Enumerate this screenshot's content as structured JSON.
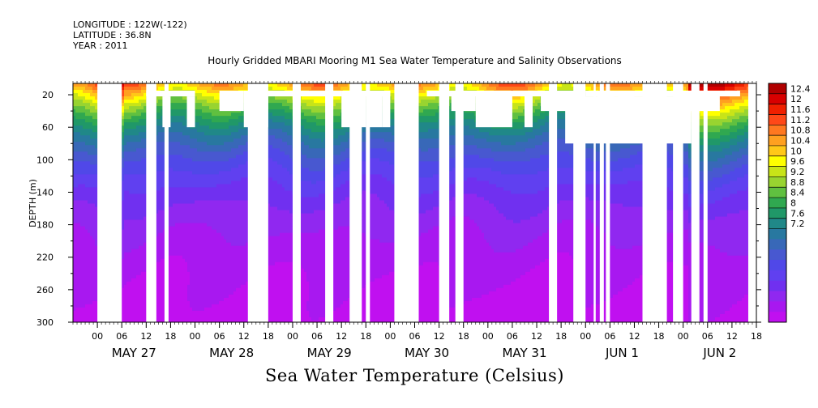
{
  "header": {
    "longitude": "LONGITUDE : 122W(-122)",
    "latitude": "LATITUDE : 36.8N",
    "year": "YEAR : 2011"
  },
  "chart_data": {
    "type": "heatmap",
    "title": "Hourly Gridded MBARI Mooring M1 Sea Water Temperature and Salinity Observations",
    "variable_label": "Sea Water Temperature (Celsius)",
    "ylabel": "DEPTH (m)",
    "y_ticks": [
      20,
      60,
      100,
      140,
      180,
      220,
      260,
      300
    ],
    "ylim": [
      6,
      300
    ],
    "y_inverted": true,
    "xlim_hours_of_window": [
      -6,
      162
    ],
    "hour_ticks": [
      "00",
      "06",
      "12",
      "18",
      "00",
      "06",
      "12",
      "18",
      "00",
      "06",
      "12",
      "18",
      "00",
      "06",
      "12",
      "18",
      "00",
      "06",
      "12",
      "18",
      "00",
      "06",
      "12",
      "18",
      "00",
      "06",
      "12",
      "18"
    ],
    "date_labels": [
      "MAY 27",
      "MAY 28",
      "MAY 29",
      "MAY 30",
      "MAY 31",
      "JUN  1",
      "JUN  2"
    ],
    "colorbar": {
      "labels": [
        "12.4",
        "12",
        "11.6",
        "11.2",
        "10.8",
        "10.4",
        "10",
        "9.6",
        "9.2",
        "8.8",
        "8.4",
        "8",
        "7.6",
        "7.2"
      ],
      "colors": [
        "#b00000",
        "#d80000",
        "#f02000",
        "#ff4818",
        "#ff7820",
        "#ffa020",
        "#ffc818",
        "#ffff00",
        "#c8e418",
        "#98d430",
        "#60c040",
        "#30a850",
        "#209868",
        "#208888",
        "#2878a0",
        "#3868b8",
        "#4858d0",
        "#5048e8",
        "#6040f0",
        "#7030f0",
        "#9028f0",
        "#a818f0",
        "#c010f0"
      ],
      "min": 7.2,
      "max": 12.4
    },
    "field": {
      "surface_temp": 11.0,
      "bottom_temp": 7.2,
      "decay_depth_m": 85,
      "surface_warm_days": [
        -6,
        6,
        18,
        30,
        42,
        60,
        70,
        84,
        96,
        108,
        120,
        130,
        140,
        150,
        156
      ]
    },
    "gaps": [
      {
        "hours": [
          0,
          6
        ],
        "depth_from": 6,
        "depth_to": 300
      },
      {
        "hours": [
          6,
          12
        ],
        "depth_from": 22,
        "depth_to": 300
      },
      {
        "hours": [
          12,
          16
        ],
        "depth_from": 22,
        "depth_to": 300
      },
      {
        "hours": [
          16,
          18
        ],
        "depth_from": 22,
        "depth_to": 60
      },
      {
        "hours": [
          18,
          22
        ],
        "depth_from": 22,
        "depth_to": 300
      },
      {
        "hours": [
          19,
          22
        ],
        "depth_from": 22,
        "depth_to": 300
      },
      {
        "hours": [
          22,
          24
        ],
        "depth_from": 22,
        "depth_to": 60
      },
      {
        "hours": [
          30,
          36
        ],
        "depth_from": 15,
        "depth_to": 40
      },
      {
        "hours": [
          36,
          42
        ],
        "depth_from": 15,
        "depth_to": 60
      },
      {
        "hours": [
          42,
          57
        ],
        "depth_from": 15,
        "depth_to": 300
      },
      {
        "hours": [
          57,
          60
        ],
        "depth_from": 15,
        "depth_to": 22
      },
      {
        "hours": [
          60,
          66
        ],
        "depth_from": 15,
        "depth_to": 60
      },
      {
        "hours": [
          64,
          67
        ],
        "depth_from": 10,
        "depth_to": 22
      },
      {
        "hours": [
          66,
          70
        ],
        "depth_from": 15,
        "depth_to": 60
      },
      {
        "hours": [
          66,
          69
        ],
        "depth_from": 60,
        "depth_to": 300
      },
      {
        "hours": [
          70,
          72
        ],
        "depth_from": 15,
        "depth_to": 60
      },
      {
        "hours": [
          72,
          81
        ],
        "depth_from": 15,
        "depth_to": 300
      },
      {
        "hours": [
          87,
          93
        ],
        "depth_from": 15,
        "depth_to": 40
      },
      {
        "hours": [
          93,
          102
        ],
        "depth_from": 15,
        "depth_to": 60
      },
      {
        "hours": [
          102,
          105
        ],
        "depth_from": 15,
        "depth_to": 300
      },
      {
        "hours": [
          105,
          107
        ],
        "depth_from": 15,
        "depth_to": 60
      },
      {
        "hours": [
          107,
          109
        ],
        "depth_from": 15,
        "depth_to": 300
      },
      {
        "hours": [
          109,
          118
        ],
        "depth_from": 15,
        "depth_to": 40
      },
      {
        "hours": [
          117,
          120
        ],
        "depth_from": 15,
        "depth_to": 60
      },
      {
        "hours": [
          123,
          127
        ],
        "depth_from": 15,
        "depth_to": 60
      },
      {
        "hours": [
          128,
          132
        ],
        "depth_from": 15,
        "depth_to": 40
      },
      {
        "hours": [
          135,
          142
        ],
        "depth_from": 15,
        "depth_to": 300
      },
      {
        "hours": [
          146,
          153
        ],
        "depth_from": 15,
        "depth_to": 40
      },
      {
        "hours": [
          142,
          147
        ],
        "depth_from": 15,
        "depth_to": 40
      }
    ],
    "column_gaps_hours": [
      [
        0,
        6
      ],
      [
        12,
        14.5
      ],
      [
        16.5,
        17.5
      ],
      [
        37,
        42
      ],
      [
        48,
        50
      ],
      [
        56,
        58
      ],
      [
        62,
        65
      ],
      [
        66,
        67
      ],
      [
        73,
        79
      ],
      [
        84,
        86.5
      ],
      [
        88,
        90
      ],
      [
        111,
        113
      ],
      [
        117,
        120
      ],
      [
        122,
        122.5
      ],
      [
        123.5,
        124.5
      ],
      [
        125,
        126
      ],
      [
        134,
        140
      ],
      [
        141.5,
        144
      ],
      [
        146,
        148
      ],
      [
        149,
        150
      ],
      [
        160,
        162
      ]
    ],
    "top_gap_segments": [
      {
        "hours": [
          12,
          24
        ],
        "depth_to": 22
      },
      {
        "hours": [
          42,
          57
        ],
        "depth_to": 22
      },
      {
        "hours": [
          60,
          72
        ],
        "depth_to": 22
      },
      {
        "hours": [
          81,
          102
        ],
        "depth_to": 22
      },
      {
        "hours": [
          102,
          118
        ],
        "depth_to": 22
      },
      {
        "hours": [
          120,
          132
        ],
        "depth_to": 22
      },
      {
        "hours": [
          132,
          158
        ],
        "depth_to": 22
      }
    ],
    "deep_gap_segments": [
      {
        "hours": [
          115,
          146
        ],
        "depth_from": 22,
        "depth_to": 80
      }
    ]
  }
}
